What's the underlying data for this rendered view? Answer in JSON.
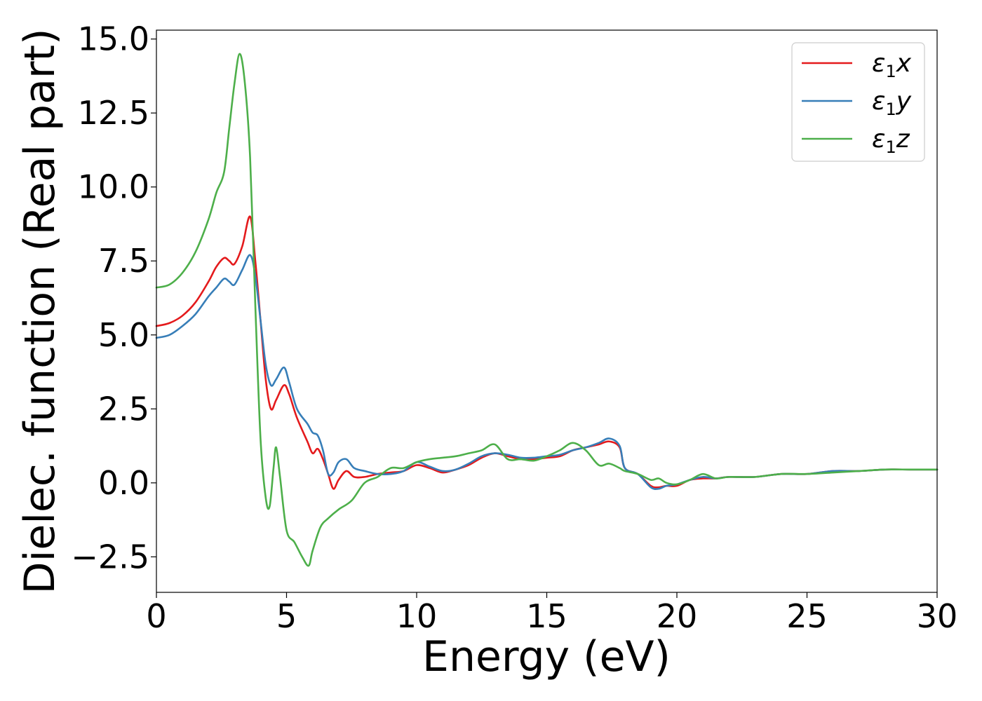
{
  "chart_data": {
    "type": "line",
    "xlabel": "Energy (eV)",
    "ylabel": "Dielec. function (Real part)",
    "xlim": [
      0,
      30
    ],
    "ylim": [
      -3.7,
      15.3
    ],
    "xticks": [
      0,
      5,
      10,
      15,
      20,
      25,
      30
    ],
    "xtick_labels": [
      "0",
      "5",
      "10",
      "15",
      "20",
      "25",
      "30"
    ],
    "yticks": [
      -2.5,
      0.0,
      2.5,
      5.0,
      7.5,
      10.0,
      12.5,
      15.0
    ],
    "ytick_labels": [
      "−2.5",
      "0.0",
      "2.5",
      "5.0",
      "7.5",
      "10.0",
      "12.5",
      "15.0"
    ],
    "grid": false,
    "legend_position": "top-right",
    "series": [
      {
        "name": "ε1x",
        "legend_main": "ε",
        "legend_sub": "1",
        "legend_suffix": "x",
        "color": "#e41a1c",
        "x": [
          0,
          0.5,
          1.0,
          1.5,
          2.0,
          2.3,
          2.6,
          2.8,
          3.0,
          3.3,
          3.6,
          3.8,
          4.0,
          4.2,
          4.4,
          4.6,
          4.9,
          5.1,
          5.4,
          5.8,
          6.0,
          6.2,
          6.4,
          6.6,
          6.8,
          7.0,
          7.3,
          7.6,
          8.0,
          8.5,
          9.0,
          9.5,
          10.0,
          10.5,
          11.0,
          11.5,
          12.0,
          12.5,
          13.0,
          13.5,
          14.0,
          14.5,
          15.0,
          15.5,
          16.0,
          16.5,
          17.0,
          17.4,
          17.8,
          18.0,
          18.5,
          19.0,
          19.3,
          19.6,
          20.0,
          20.5,
          21.0,
          21.5,
          22.0,
          23.0,
          24.0,
          25.0,
          26.0,
          27.0,
          28.0,
          29.0,
          30.0
        ],
        "y": [
          5.3,
          5.4,
          5.65,
          6.1,
          6.8,
          7.3,
          7.6,
          7.5,
          7.4,
          8.0,
          9.0,
          7.5,
          5.5,
          3.5,
          2.5,
          2.8,
          3.3,
          3.0,
          2.2,
          1.4,
          1.0,
          1.15,
          0.8,
          0.3,
          -0.2,
          0.1,
          0.4,
          0.2,
          0.2,
          0.3,
          0.35,
          0.4,
          0.6,
          0.5,
          0.35,
          0.45,
          0.6,
          0.85,
          1.0,
          0.9,
          0.8,
          0.8,
          0.85,
          0.9,
          1.1,
          1.2,
          1.3,
          1.4,
          1.2,
          0.5,
          0.3,
          -0.1,
          -0.15,
          -0.1,
          -0.1,
          0.1,
          0.15,
          0.15,
          0.2,
          0.2,
          0.3,
          0.3,
          0.4,
          0.4,
          0.45,
          0.45,
          0.45
        ]
      },
      {
        "name": "ε1y",
        "legend_main": "ε",
        "legend_sub": "1",
        "legend_suffix": "y",
        "color": "#377eb8",
        "x": [
          0,
          0.5,
          1.0,
          1.5,
          2.0,
          2.3,
          2.6,
          2.8,
          3.0,
          3.3,
          3.6,
          3.8,
          4.0,
          4.2,
          4.4,
          4.6,
          4.9,
          5.1,
          5.4,
          5.8,
          6.0,
          6.2,
          6.4,
          6.6,
          6.8,
          7.0,
          7.3,
          7.6,
          8.0,
          8.5,
          9.0,
          9.5,
          10.0,
          10.5,
          11.0,
          11.5,
          12.0,
          12.5,
          13.0,
          13.5,
          14.0,
          14.5,
          15.0,
          15.5,
          16.0,
          16.5,
          17.0,
          17.4,
          17.8,
          18.0,
          18.5,
          19.0,
          19.3,
          19.6,
          20.0,
          20.5,
          21.0,
          21.5,
          22.0,
          23.0,
          24.0,
          25.0,
          26.0,
          27.0,
          28.0,
          29.0,
          30.0
        ],
        "y": [
          4.9,
          5.0,
          5.3,
          5.7,
          6.3,
          6.6,
          6.9,
          6.8,
          6.7,
          7.2,
          7.7,
          7.0,
          5.5,
          4.0,
          3.3,
          3.5,
          3.9,
          3.4,
          2.5,
          2.0,
          1.7,
          1.6,
          1.1,
          0.3,
          0.35,
          0.7,
          0.8,
          0.5,
          0.4,
          0.3,
          0.3,
          0.4,
          0.7,
          0.55,
          0.4,
          0.45,
          0.65,
          0.9,
          1.0,
          0.95,
          0.85,
          0.85,
          0.9,
          0.95,
          1.1,
          1.2,
          1.35,
          1.5,
          1.25,
          0.5,
          0.3,
          -0.15,
          -0.2,
          -0.1,
          -0.05,
          0.1,
          0.2,
          0.15,
          0.2,
          0.2,
          0.3,
          0.3,
          0.4,
          0.4,
          0.45,
          0.45,
          0.45
        ]
      },
      {
        "name": "ε1z",
        "legend_main": "ε",
        "legend_sub": "1",
        "legend_suffix": "z",
        "color": "#4daf4a",
        "x": [
          0,
          0.5,
          1.0,
          1.5,
          2.0,
          2.3,
          2.6,
          2.8,
          3.0,
          3.2,
          3.4,
          3.6,
          3.8,
          4.0,
          4.2,
          4.35,
          4.5,
          4.6,
          4.75,
          5.0,
          5.3,
          5.6,
          5.85,
          6.0,
          6.3,
          6.6,
          7.0,
          7.5,
          8.0,
          8.5,
          9.0,
          9.5,
          10.0,
          10.5,
          11.0,
          11.5,
          12.0,
          12.5,
          13.0,
          13.5,
          14.0,
          14.5,
          15.0,
          15.5,
          16.0,
          16.5,
          17.0,
          17.4,
          17.8,
          18.0,
          18.5,
          19.0,
          19.3,
          19.6,
          20.0,
          20.5,
          21.0,
          21.5,
          22.0,
          23.0,
          24.0,
          25.0,
          26.0,
          27.0,
          28.0,
          29.0,
          30.0
        ],
        "y": [
          6.6,
          6.7,
          7.1,
          7.8,
          8.9,
          9.8,
          10.5,
          12.0,
          13.5,
          14.5,
          13.5,
          11.0,
          6.0,
          1.5,
          -0.5,
          -0.8,
          0.5,
          1.2,
          0.2,
          -1.6,
          -2.0,
          -2.5,
          -2.8,
          -2.3,
          -1.5,
          -1.2,
          -0.9,
          -0.6,
          0.0,
          0.2,
          0.5,
          0.5,
          0.7,
          0.8,
          0.85,
          0.9,
          1.0,
          1.1,
          1.3,
          0.8,
          0.8,
          0.75,
          0.9,
          1.1,
          1.35,
          1.1,
          0.6,
          0.65,
          0.5,
          0.4,
          0.3,
          0.1,
          0.15,
          0.0,
          -0.05,
          0.1,
          0.3,
          0.15,
          0.2,
          0.2,
          0.3,
          0.3,
          0.35,
          0.4,
          0.45,
          0.45,
          0.45
        ]
      }
    ]
  }
}
